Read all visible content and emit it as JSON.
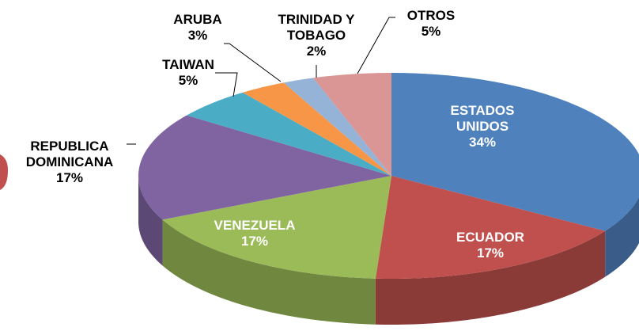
{
  "chart_data": {
    "type": "pie",
    "categories": [
      "ESTADOS UNIDOS",
      "ECUADOR",
      "VENEZUELA",
      "REPUBLICA DOMINICANA",
      "TAIWAN",
      "ARUBA",
      "TRINIDAD Y TOBAGO",
      "OTROS"
    ],
    "values": [
      34,
      17,
      17,
      17,
      5,
      3,
      2,
      5
    ],
    "value_labels": [
      "34%",
      "17%",
      "17%",
      "17%",
      "5%",
      "3%",
      "2%",
      "5%"
    ],
    "colors": [
      "#4f81bd",
      "#c0504d",
      "#9bbb59",
      "#8064a2",
      "#4bacc6",
      "#f79646",
      "#95b3d7",
      "#d99694"
    ]
  }
}
